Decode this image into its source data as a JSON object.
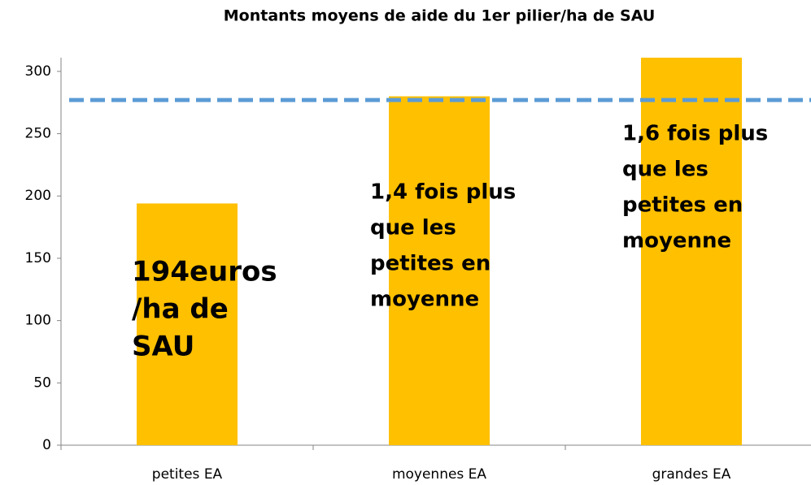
{
  "chart_data": {
    "type": "bar",
    "title": "Montants moyens de aide du 1er pilier/ha de SAU",
    "categories": [
      "petites EA",
      "moyennes EA",
      "grandes EA"
    ],
    "values": [
      194,
      280,
      311
    ],
    "color": "#ffc000",
    "ylim": [
      0,
      311
    ],
    "yticks": [
      0,
      50,
      100,
      150,
      200,
      250,
      300
    ],
    "grid": false,
    "reference_line": {
      "value": 277,
      "color": "#5b9bd5",
      "dashed": true
    },
    "annotations": [
      {
        "lines": [
          "194euros",
          "/ha de",
          "SAU"
        ]
      },
      {
        "lines": [
          "1,4 fois plus",
          "que les",
          "petites en",
          "moyenne"
        ]
      },
      {
        "lines": [
          "1,6 fois plus",
          "que les",
          "petites en",
          "moyenne"
        ]
      }
    ]
  }
}
